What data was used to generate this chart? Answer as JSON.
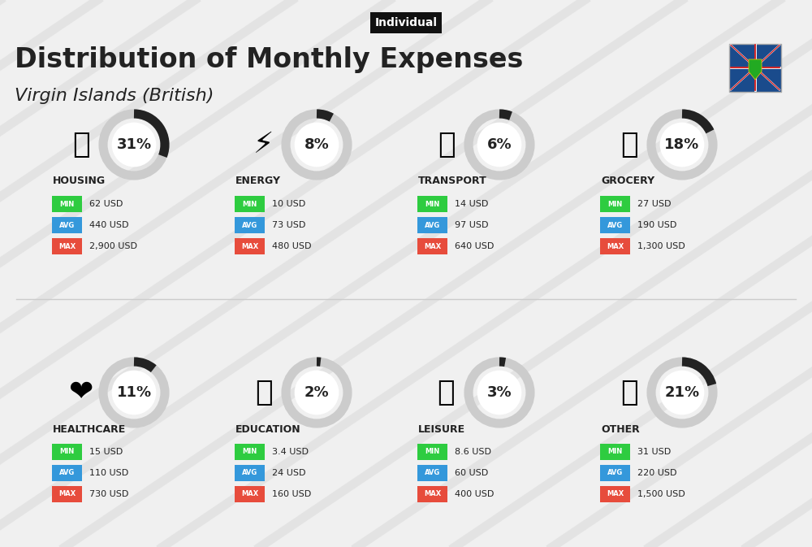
{
  "title": "Distribution of Monthly Expenses",
  "subtitle": "Virgin Islands (British)",
  "tag": "Individual",
  "bg_color": "#f0f0f0",
  "categories": [
    {
      "name": "HOUSING",
      "pct": 31,
      "min_val": "62 USD",
      "avg_val": "440 USD",
      "max_val": "2,900 USD",
      "row": 0,
      "col": 0
    },
    {
      "name": "ENERGY",
      "pct": 8,
      "min_val": "10 USD",
      "avg_val": "73 USD",
      "max_val": "480 USD",
      "row": 0,
      "col": 1
    },
    {
      "name": "TRANSPORT",
      "pct": 6,
      "min_val": "14 USD",
      "avg_val": "97 USD",
      "max_val": "640 USD",
      "row": 0,
      "col": 2
    },
    {
      "name": "GROCERY",
      "pct": 18,
      "min_val": "27 USD",
      "avg_val": "190 USD",
      "max_val": "1,300 USD",
      "row": 0,
      "col": 3
    },
    {
      "name": "HEALTHCARE",
      "pct": 11,
      "min_val": "15 USD",
      "avg_val": "110 USD",
      "max_val": "730 USD",
      "row": 1,
      "col": 0
    },
    {
      "name": "EDUCATION",
      "pct": 2,
      "min_val": "3.4 USD",
      "avg_val": "24 USD",
      "max_val": "160 USD",
      "row": 1,
      "col": 1
    },
    {
      "name": "LEISURE",
      "pct": 3,
      "min_val": "8.6 USD",
      "avg_val": "60 USD",
      "max_val": "400 USD",
      "row": 1,
      "col": 2
    },
    {
      "name": "OTHER",
      "pct": 21,
      "min_val": "31 USD",
      "avg_val": "220 USD",
      "max_val": "1,500 USD",
      "row": 1,
      "col": 3
    }
  ],
  "min_color": "#2ecc40",
  "avg_color": "#3498db",
  "max_color": "#e74c3c",
  "label_color": "#ffffff",
  "text_color": "#222222",
  "circle_bg": "#e0e0e0",
  "circle_fg": "#222222"
}
